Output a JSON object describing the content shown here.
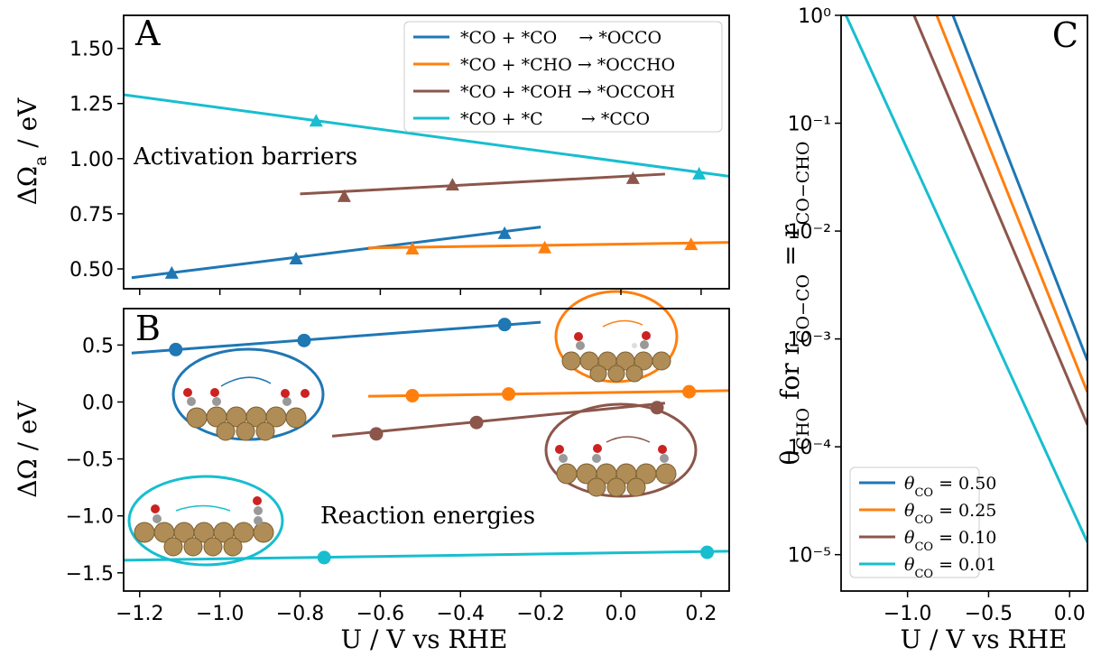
{
  "chart_data": [
    {
      "type": "line",
      "title": "A",
      "annotation": "Activation barriers",
      "y_label": [
        {
          "text": "ΔΩ"
        },
        {
          "text": "a",
          "sub": true
        },
        {
          "text": " / eV"
        }
      ],
      "markers": "triangle",
      "legend": "upper right",
      "xlim": [
        -1.24,
        0.27
      ],
      "ylim": [
        0.41,
        1.65
      ],
      "xticks": [
        -1.2,
        -1,
        -0.8,
        -0.6,
        -0.4,
        -0.2,
        0,
        0.2
      ],
      "yticks": [
        {
          "value": 0.5,
          "label": "0.50"
        },
        0.75,
        {
          "value": 1,
          "label": "1.00"
        },
        1.25,
        {
          "value": 1.5,
          "label": "1.50"
        }
      ],
      "series": [
        {
          "name": "*CO + *CO    → *OCCO",
          "color": "#1f77b4",
          "x": [
            -1.12,
            -0.81,
            -0.29
          ],
          "values": [
            0.48,
            0.545,
            0.66
          ],
          "fit": {
            "x": [
              -1.22,
              -0.2
            ],
            "values": [
              0.46,
              0.69
            ]
          }
        },
        {
          "name": "*CO + *CHO → *OCCHO",
          "color": "#ff7f0e",
          "x": [
            -0.52,
            -0.19,
            0.175
          ],
          "values": [
            0.59,
            0.595,
            0.61
          ],
          "fit": {
            "x": [
              -0.63,
              0.27
            ],
            "values": [
              0.595,
              0.62
            ]
          }
        },
        {
          "name": "*CO + *COH → *OCCOH",
          "color": "#8c564b",
          "x": [
            -0.69,
            -0.42,
            0.03
          ],
          "values": [
            0.828,
            0.88,
            0.91
          ],
          "fit": {
            "x": [
              -0.8,
              0.11
            ],
            "values": [
              0.84,
              0.93
            ]
          }
        },
        {
          "name": "*CO + *C       → *CCO",
          "color": "#17becf",
          "x": [
            -0.76,
            0.195
          ],
          "values": [
            1.17,
            0.93
          ],
          "fit": {
            "x": [
              -1.24,
              0.27
            ],
            "values": [
              1.29,
              0.92
            ]
          }
        }
      ]
    },
    {
      "type": "line",
      "title": "B",
      "annotation": "Reaction energies",
      "y_label": [
        {
          "text": "ΔΩ / eV"
        }
      ],
      "x_label": "U / V vs RHE",
      "markers": "circle",
      "xlim": [
        -1.24,
        0.27
      ],
      "ylim": [
        -1.66,
        0.82
      ],
      "xticks": [
        {
          "value": -1.2,
          "label": "−1.2"
        },
        {
          "value": -1,
          "label": "−1.0"
        },
        {
          "value": -0.8,
          "label": "−0.8"
        },
        {
          "value": -0.6,
          "label": "−0.6"
        },
        {
          "value": -0.4,
          "label": "−0.4"
        },
        {
          "value": -0.2,
          "label": "−0.2"
        },
        {
          "value": 0,
          "label": "0.0"
        },
        0.2
      ],
      "yticks": [
        {
          "value": -1.5,
          "label": "−1.5"
        },
        {
          "value": -1,
          "label": "−1.0"
        },
        {
          "value": -0.5,
          "label": "−0.5"
        },
        {
          "value": 0,
          "label": "0.0"
        },
        0.5
      ],
      "series": [
        {
          "color": "#1f77b4",
          "x": [
            -1.11,
            -0.79,
            -0.29
          ],
          "values": [
            0.46,
            0.54,
            0.68
          ],
          "fit": {
            "x": [
              -1.22,
              -0.2
            ],
            "values": [
              0.43,
              0.7
            ]
          }
        },
        {
          "color": "#ff7f0e",
          "x": [
            -0.52,
            -0.28,
            0.17
          ],
          "values": [
            0.055,
            0.07,
            0.09
          ],
          "fit": {
            "x": [
              -0.63,
              0.27
            ],
            "values": [
              0.05,
              0.1
            ]
          }
        },
        {
          "color": "#8c564b",
          "x": [
            -0.61,
            -0.36,
            0.09
          ],
          "values": [
            -0.28,
            -0.18,
            -0.05
          ],
          "fit": {
            "x": [
              -0.72,
              0.11
            ],
            "values": [
              -0.3,
              -0.01
            ]
          }
        },
        {
          "color": "#17becf",
          "x": [
            -0.74,
            0.215
          ],
          "values": [
            -1.366,
            -1.32
          ],
          "fit": {
            "x": [
              -1.24,
              0.27
            ],
            "values": [
              -1.39,
              -1.31
            ]
          }
        }
      ]
    },
    {
      "type": "line",
      "title": "C",
      "log_y": true,
      "legend": "lower left",
      "y_label": [
        {
          "text": "θ"
        },
        {
          "text": "CHO",
          "sub": true
        },
        {
          "text": " for "
        },
        {
          "text": "r"
        },
        {
          "text": "CO−CO",
          "sub": true
        },
        {
          "text": " = "
        },
        {
          "text": "r"
        },
        {
          "text": "CO−CHO",
          "sub": true
        }
      ],
      "x_label": "U / V vs RHE",
      "xlim": [
        -1.41,
        0.11
      ],
      "ylim": [
        4.6e-06,
        1
      ],
      "xticks": [
        {
          "value": -1,
          "label": "−1.0"
        },
        {
          "value": -0.5,
          "label": "−0.5"
        },
        {
          "value": 0,
          "label": "0.0"
        }
      ],
      "yticks": [
        {
          "value": 1,
          "label": "10⁰"
        },
        {
          "value": 0.1,
          "label": "10⁻¹"
        },
        {
          "value": 0.01,
          "label": "10⁻²"
        },
        {
          "value": 0.001,
          "label": "10⁻³"
        },
        {
          "value": 0.0001,
          "label": "10⁻⁴"
        },
        {
          "value": 1e-05,
          "label": "10⁻⁵"
        }
      ],
      "series": [
        {
          "name": "θCO = 0.50",
          "color": "#1f77b4",
          "x": [
            -0.72,
            0.11
          ],
          "values": [
            1,
            0.00063
          ]
        },
        {
          "name": "θCO = 0.25",
          "color": "#ff7f0e",
          "x": [
            -0.82,
            0.11
          ],
          "values": [
            1,
            0.00032
          ]
        },
        {
          "name": "θCO = 0.10",
          "color": "#8c564b",
          "x": [
            -0.96,
            0.11
          ],
          "values": [
            1,
            0.00016
          ]
        },
        {
          "name": "θCO = 0.01",
          "color": "#17becf",
          "x": [
            -1.38,
            0.11
          ],
          "values": [
            1,
            1.3e-05
          ]
        }
      ]
    }
  ]
}
